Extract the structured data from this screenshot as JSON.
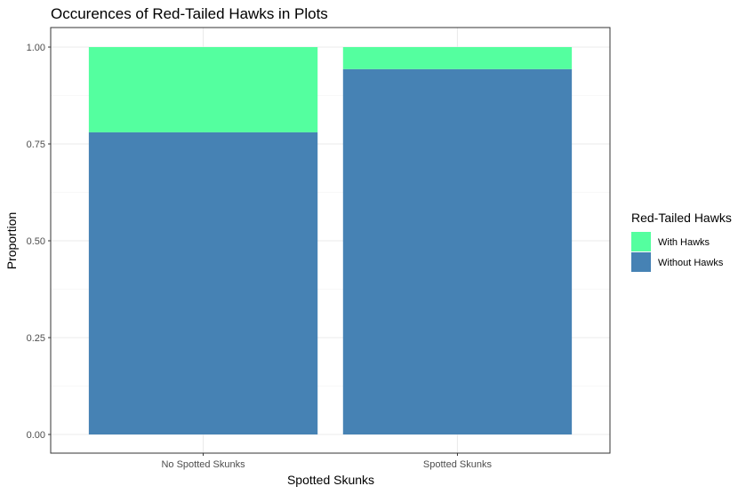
{
  "chart_data": {
    "type": "bar",
    "stacked": true,
    "title": "Occurences of Red-Tailed Hawks in Plots",
    "xlabel": "Spotted Skunks",
    "ylabel": "Proportion",
    "categories": [
      "No Spotted Skunks",
      "Spotted Skunks"
    ],
    "ylim": [
      0,
      1
    ],
    "yticks": [
      "0.00",
      "0.25",
      "0.50",
      "0.75",
      "1.00"
    ],
    "grid": true,
    "legend": {
      "title": "Red-Tailed Hawks",
      "position": "right",
      "items": [
        "With Hawks",
        "Without Hawks"
      ]
    },
    "series": [
      {
        "name": "Without Hawks",
        "values": [
          0.78,
          0.943
        ],
        "color": "#4682B4"
      },
      {
        "name": "With Hawks",
        "values": [
          0.22,
          0.057
        ],
        "color": "#54FF9F"
      }
    ]
  }
}
